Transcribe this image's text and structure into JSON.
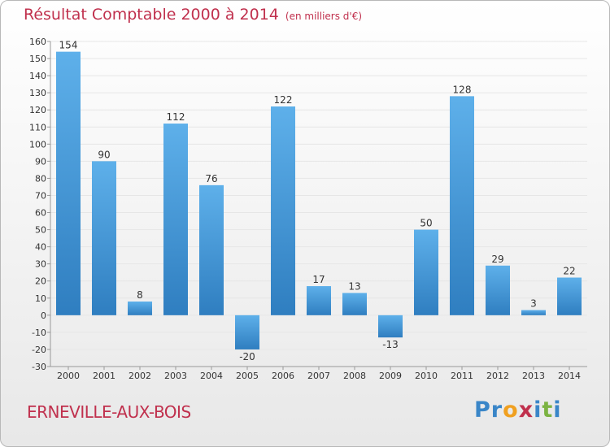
{
  "title": "Résultat Comptable 2000 à 2014",
  "unit_note": "(en milliers d'€)",
  "commune": "ERNEVILLE-AUX-BOIS",
  "logo": {
    "text": "Proxiti",
    "letters": [
      {
        "ch": "P",
        "color": "#3a86c8"
      },
      {
        "ch": "r",
        "color": "#3a86c8"
      },
      {
        "ch": "o",
        "color": "#f0a020"
      },
      {
        "ch": "x",
        "color": "#c0304d"
      },
      {
        "ch": "i",
        "color": "#3a86c8"
      },
      {
        "ch": "t",
        "color": "#7cb342"
      },
      {
        "ch": "i",
        "color": "#3a86c8"
      }
    ]
  },
  "colors": {
    "bar_top": "#5eb0ea",
    "bar_bottom": "#2f7ec0",
    "grid": "#e6e6e6",
    "axis": "#999999",
    "text": "#333333",
    "accent": "#c0304d"
  },
  "chart_data": {
    "type": "bar",
    "categories": [
      "2000",
      "2001",
      "2002",
      "2003",
      "2004",
      "2005",
      "2006",
      "2007",
      "2008",
      "2009",
      "2010",
      "2011",
      "2012",
      "2013",
      "2014"
    ],
    "values": [
      154,
      90,
      8,
      112,
      76,
      -20,
      122,
      17,
      13,
      -13,
      50,
      128,
      29,
      3,
      22
    ],
    "data_labels": [
      "154",
      "90",
      "8",
      "112",
      "76",
      "-20",
      "122",
      "17",
      "13",
      "-13",
      "50",
      "128",
      "29",
      "3",
      "22"
    ],
    "ylim": [
      -30,
      160
    ],
    "yticks": [
      -30,
      -20,
      -10,
      0,
      10,
      20,
      30,
      40,
      50,
      60,
      70,
      80,
      90,
      100,
      110,
      120,
      130,
      140,
      150,
      160
    ],
    "grid": true,
    "legend": "none"
  }
}
